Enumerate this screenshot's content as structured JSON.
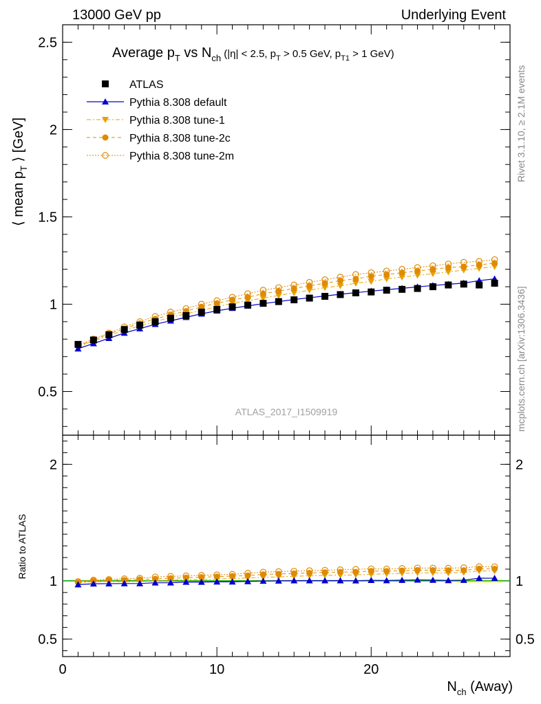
{
  "header": {
    "left": "13000 GeV pp",
    "right": "Underlying Event"
  },
  "title": {
    "t1": "Average p",
    "t1_sub": "T",
    "t2": " vs N",
    "t2_sub": "ch",
    "rest_a": " (|η| < 2.5, p",
    "rest_a_sub": "T",
    "rest_b": " > 0.5 GeV, p",
    "rest_b_sub": "T1",
    "rest_c": " > 1 GeV)"
  },
  "side_labels": {
    "rivet": "Rivet 3.1.10, ≥ 2.1M events",
    "mcplots": "mcplots.cern.ch [arXiv:1306.3436]"
  },
  "watermark": "ATLAS_2017_I1509919",
  "ylabel_top": {
    "a": "⟨ mean p",
    "sub": "T",
    "b": " ⟩ [GeV]"
  },
  "ylabel_bottom": "Ratio to ATLAS",
  "xlabel": {
    "a": "N",
    "sub": "ch",
    "b": " (Away)"
  },
  "legend": [
    {
      "label": "ATLAS",
      "color": "#000000",
      "marker": "square"
    },
    {
      "label": "Pythia 8.308 default",
      "color": "#0000cc",
      "marker": "triangle-up"
    },
    {
      "label": "Pythia 8.308 tune-1",
      "color": "#e8a000",
      "marker": "triangle-down"
    },
    {
      "label": "Pythia 8.308 tune-2c",
      "color": "#e08a00",
      "marker": "circle-filled"
    },
    {
      "label": "Pythia 8.308 tune-2m",
      "color": "#e08a00",
      "marker": "circle-open"
    }
  ],
  "chart_data": {
    "type": "line",
    "top": {
      "ylim": [
        0.25,
        2.6
      ],
      "xlim": [
        0,
        29
      ],
      "yticks": [
        "0.5",
        "1",
        "1.5",
        "2",
        "2.5"
      ],
      "ytick_values": [
        0.5,
        1,
        1.5,
        2,
        2.5
      ],
      "xticks": [
        "0",
        "10",
        "20"
      ],
      "xtick_values": [
        0,
        10,
        20
      ]
    },
    "ratio": {
      "ylim": [
        0.35,
        2.25
      ],
      "yticks": [
        "0.5",
        "1",
        "2"
      ],
      "ytick_values": [
        0.5,
        1,
        2
      ]
    },
    "x": [
      1,
      2,
      3,
      4,
      5,
      6,
      7,
      8,
      9,
      10,
      11,
      12,
      13,
      14,
      15,
      16,
      17,
      18,
      19,
      20,
      21,
      22,
      23,
      24,
      25,
      26,
      27,
      28
    ],
    "series": [
      {
        "name": "ATLAS",
        "values": [
          0.77,
          0.795,
          0.825,
          0.855,
          0.88,
          0.9,
          0.92,
          0.935,
          0.955,
          0.97,
          0.985,
          0.995,
          1.005,
          1.015,
          1.025,
          1.035,
          1.045,
          1.055,
          1.065,
          1.07,
          1.08,
          1.085,
          1.09,
          1.1,
          1.11,
          1.115,
          1.11,
          1.12
        ]
      },
      {
        "name": "Pythia 8.308 default",
        "values": [
          0.745,
          0.775,
          0.805,
          0.835,
          0.86,
          0.885,
          0.905,
          0.925,
          0.945,
          0.962,
          0.977,
          0.99,
          1.003,
          1.015,
          1.027,
          1.037,
          1.047,
          1.057,
          1.066,
          1.075,
          1.083,
          1.091,
          1.099,
          1.107,
          1.114,
          1.121,
          1.135,
          1.145
        ]
      },
      {
        "name": "Pythia 8.308 tune-1",
        "values": [
          0.755,
          0.79,
          0.82,
          0.85,
          0.875,
          0.9,
          0.925,
          0.945,
          0.965,
          0.985,
          1.005,
          1.02,
          1.035,
          1.05,
          1.065,
          1.08,
          1.095,
          1.105,
          1.12,
          1.13,
          1.145,
          1.155,
          1.165,
          1.175,
          1.185,
          1.195,
          1.205,
          1.215
        ]
      },
      {
        "name": "Pythia 8.308 tune-2c",
        "values": [
          0.76,
          0.795,
          0.83,
          0.86,
          0.89,
          0.915,
          0.94,
          0.96,
          0.985,
          1.005,
          1.025,
          1.04,
          1.06,
          1.075,
          1.09,
          1.105,
          1.12,
          1.135,
          1.145,
          1.16,
          1.17,
          1.18,
          1.19,
          1.2,
          1.21,
          1.215,
          1.225,
          1.235
        ]
      },
      {
        "name": "Pythia 8.308 tune-2m",
        "values": [
          0.765,
          0.8,
          0.835,
          0.87,
          0.9,
          0.93,
          0.955,
          0.975,
          1.0,
          1.02,
          1.04,
          1.06,
          1.08,
          1.095,
          1.11,
          1.125,
          1.14,
          1.155,
          1.17,
          1.18,
          1.19,
          1.2,
          1.21,
          1.22,
          1.23,
          1.24,
          1.245,
          1.255
        ]
      }
    ]
  }
}
